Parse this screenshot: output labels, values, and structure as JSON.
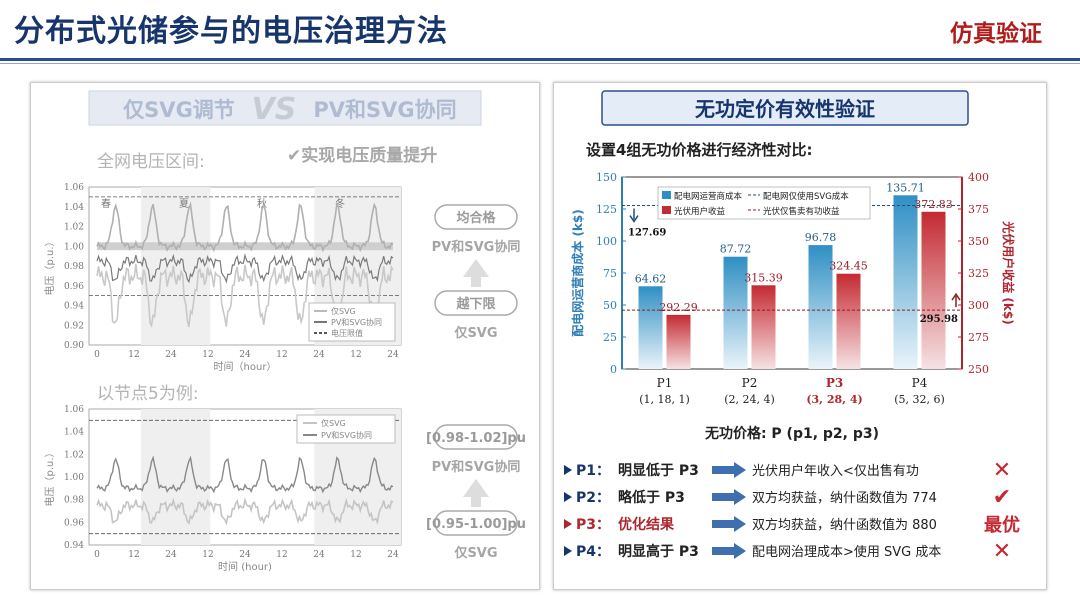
{
  "header": {
    "title": "分布式光储参与的电压治理方法",
    "tag": "仿真验证"
  },
  "left": {
    "banner": {
      "a": "仅SVG调节",
      "vs": "VS",
      "b": "PV和SVG协同"
    },
    "sub1": "全网电压区间:",
    "note1": "✔实现电压质量提升",
    "sub2": "以节点5为例:",
    "chart1": {
      "ylabel": "电压（p.u.）",
      "xlabel": "时间（hour）",
      "ticks_y": [
        "1.06",
        "1.04",
        "1.02",
        "1.00",
        "0.98",
        "0.96",
        "0.94",
        "0.92",
        "0.90"
      ],
      "ticks_x": [
        "0",
        "12",
        "24",
        "12",
        "24",
        "12",
        "24",
        "12",
        "24"
      ],
      "seasons": [
        "春",
        "夏",
        "秋",
        "冬"
      ],
      "legend": [
        "仅SVG",
        "PV和SVG协同",
        "电压限值"
      ]
    },
    "chart2": {
      "ylabel": "电压（p.u.）",
      "xlabel": "时间 (hour)",
      "ticks_y": [
        "1.06",
        "1.04",
        "1.02",
        "1.00",
        "0.98",
        "0.96",
        "0.94"
      ],
      "ticks_x": [
        "0",
        "12",
        "24",
        "12",
        "24",
        "12",
        "24",
        "12",
        "24"
      ],
      "legend": [
        "仅SVG",
        "PV和SVG协同"
      ]
    },
    "side1": {
      "top": "均合格",
      "mid": "PV和SVG协同",
      "box": "越下限",
      "bot": "仅SVG"
    },
    "side2": {
      "top": "[0.98-1.02]pu",
      "mid": "PV和SVG协同",
      "box": "[0.95-1.00]pu",
      "bot": "仅SVG"
    }
  },
  "right": {
    "title": "无功定价有效性验证",
    "subtitle": "设置4组无功价格进行经济性对比:",
    "xcaption": "无功价格: P (p1, p2, p3)",
    "conclusions": [
      {
        "k": "P1：",
        "a": "明显低于 P3",
        "b": "光伏用户年收入<仅出售有功",
        "mark": "✕"
      },
      {
        "k": "P2：",
        "a": "略低于 P3",
        "b": "双方均获益，纳什函数值为 774",
        "mark": "✔"
      },
      {
        "k": "P3：",
        "a": "优化结果",
        "b": "双方均获益，纳什函数值为 880",
        "mark": "最优"
      },
      {
        "k": "P4：",
        "a": "明显高于 P3",
        "b": "配电网治理成本>使用 SVG 成本",
        "mark": "✕"
      }
    ]
  },
  "chart_data": {
    "type": "bar",
    "categories": [
      "P1",
      "P2",
      "P3",
      "P4"
    ],
    "category_sub": [
      "(1, 18, 1)",
      "(2, 24, 4)",
      "(3, 28, 4)",
      "(5, 32, 6)"
    ],
    "series": [
      {
        "name": "配电网运营商成本",
        "axis": "left",
        "values": [
          64.62,
          87.72,
          96.78,
          135.71
        ],
        "color": "#2f8fc4"
      },
      {
        "name": "光伏用户收益",
        "axis": "right",
        "values": [
          292.29,
          315.39,
          324.45,
          372.83
        ],
        "color": "#c42a32"
      }
    ],
    "ref_lines": [
      {
        "name": "配电网仅使用SVG成本",
        "axis": "left",
        "value": 127.69,
        "label": "127.69"
      },
      {
        "name": "光伏仅售卖有功收益",
        "axis": "right",
        "value": 295.98,
        "label": "295.98"
      }
    ],
    "ylabel_left": "配电网运营商成本 (k$)",
    "ylabel_right": "光伏用户收益 (k$)",
    "ylim_left": [
      0,
      150
    ],
    "ylim_right": [
      250,
      400
    ],
    "ticks_left": [
      "0",
      "25",
      "50",
      "75",
      "100",
      "125",
      "150"
    ],
    "ticks_right": [
      "250",
      "275",
      "300",
      "325",
      "350",
      "375",
      "400"
    ]
  }
}
